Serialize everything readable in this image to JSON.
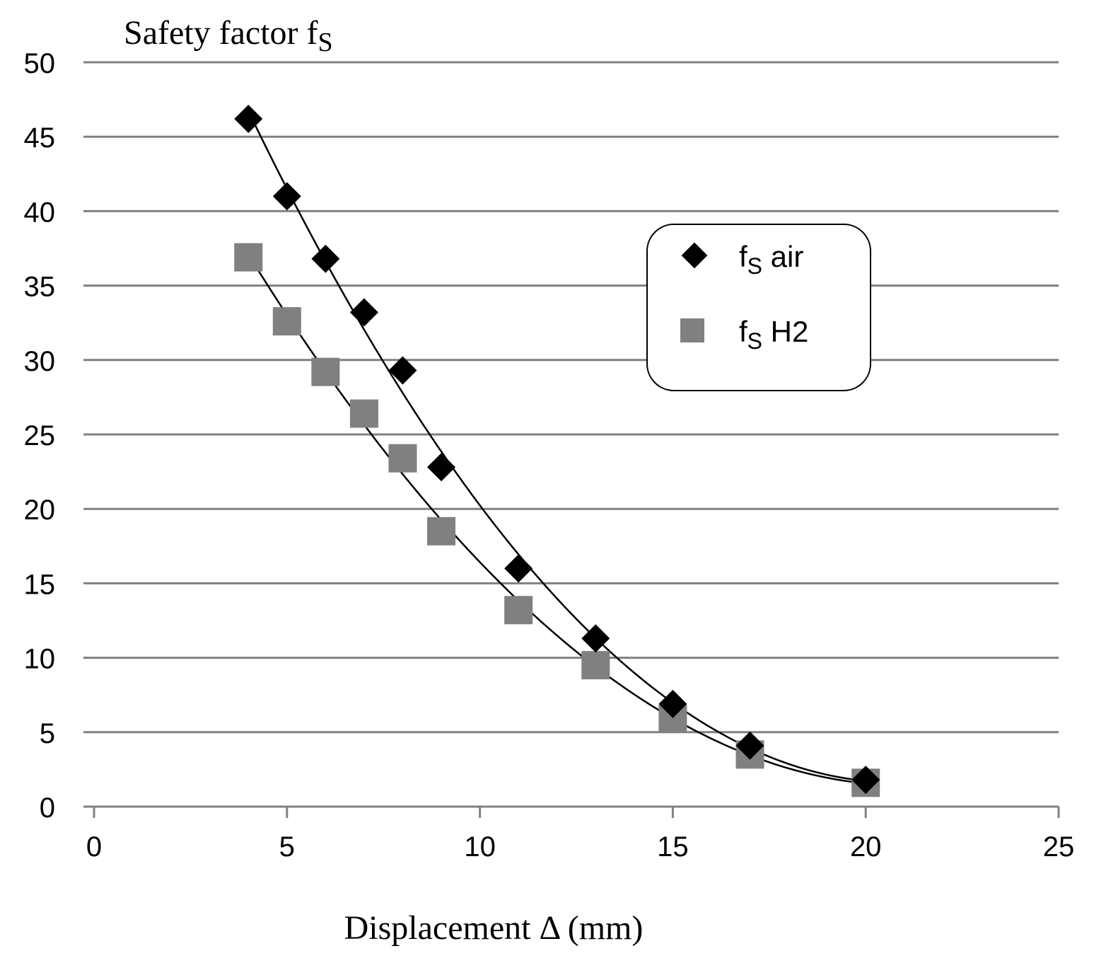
{
  "chart_data": {
    "type": "scatter",
    "title": "",
    "ylabel": "Safety factor f",
    "ylabel_sub": "S",
    "xlabel": "Displacement  Δ (mm)",
    "xlim": [
      0,
      25
    ],
    "ylim": [
      0,
      50
    ],
    "x_ticks": [
      0,
      5,
      10,
      15,
      20,
      25
    ],
    "y_ticks": [
      0,
      5,
      10,
      15,
      20,
      25,
      30,
      35,
      40,
      45,
      50
    ],
    "grid": "horizontal",
    "legend_position": "right",
    "series": [
      {
        "name": "f",
        "name_sub": "S",
        "name_suffix": " air",
        "marker": "diamond",
        "color": "#000000",
        "trendline": "polynomial",
        "x": [
          4,
          5,
          6,
          7,
          8,
          9,
          11,
          13,
          15,
          17,
          20
        ],
        "y": [
          46.2,
          41.0,
          36.8,
          33.2,
          29.3,
          22.8,
          16.0,
          11.3,
          6.9,
          4.1,
          1.8
        ]
      },
      {
        "name": "f",
        "name_sub": "S",
        "name_suffix": " H2",
        "marker": "square",
        "color": "#808080",
        "trendline": "polynomial",
        "x": [
          4,
          5,
          6,
          7,
          8,
          9,
          11,
          13,
          15,
          17,
          20
        ],
        "y": [
          36.9,
          32.6,
          29.2,
          26.4,
          23.4,
          18.5,
          13.2,
          9.5,
          5.9,
          3.5,
          1.6
        ]
      }
    ]
  }
}
